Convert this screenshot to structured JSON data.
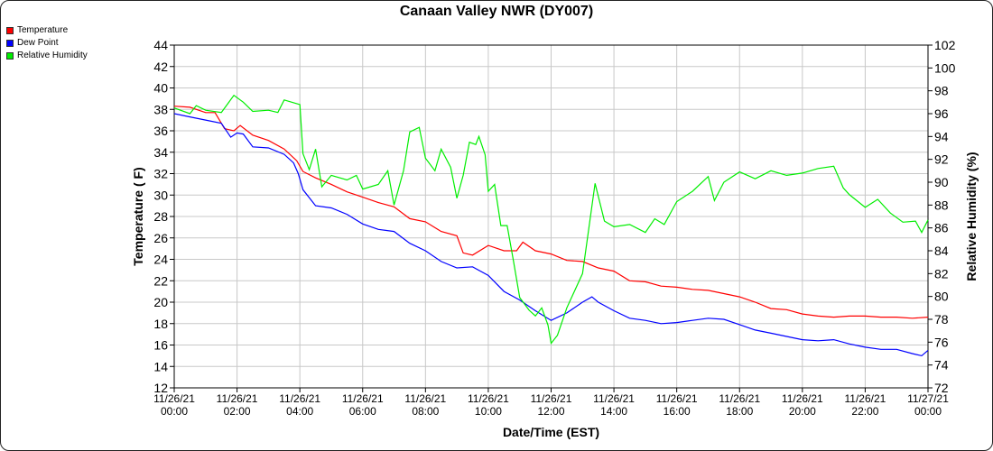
{
  "chart_data": {
    "type": "line",
    "title": "Canaan Valley NWR (DY007)",
    "xlabel": "Date/Time (EST)",
    "ylabel": "Temperature ( F)",
    "y2label": "Relative Humidity (%)",
    "ylim": [
      12,
      44
    ],
    "y2lim": [
      72,
      102
    ],
    "grid": true,
    "legend_position": "top-left",
    "x_ticks": [
      [
        "11/26/21",
        "00:00"
      ],
      [
        "11/26/21",
        "02:00"
      ],
      [
        "11/26/21",
        "04:00"
      ],
      [
        "11/26/21",
        "06:00"
      ],
      [
        "11/26/21",
        "08:00"
      ],
      [
        "11/26/21",
        "10:00"
      ],
      [
        "11/26/21",
        "12:00"
      ],
      [
        "11/26/21",
        "14:00"
      ],
      [
        "11/26/21",
        "16:00"
      ],
      [
        "11/26/21",
        "18:00"
      ],
      [
        "11/26/21",
        "20:00"
      ],
      [
        "11/26/21",
        "22:00"
      ],
      [
        "11/27/21",
        "00:00"
      ]
    ],
    "y_ticks": [
      12,
      14,
      16,
      18,
      20,
      22,
      24,
      26,
      28,
      30,
      32,
      34,
      36,
      38,
      40,
      42,
      44
    ],
    "y2_ticks": [
      72,
      74,
      76,
      78,
      80,
      82,
      84,
      86,
      88,
      90,
      92,
      94,
      96,
      98,
      100,
      102
    ],
    "series": [
      {
        "name": "Temperature",
        "axis": "left",
        "color": "#ff0000",
        "x": [
          0,
          0.5,
          1,
          1.3,
          1.6,
          1.9,
          2.1,
          2.5,
          3,
          3.5,
          3.9,
          4.1,
          4.5,
          5,
          5.5,
          6,
          6.5,
          7,
          7.5,
          8,
          8.5,
          9,
          9.2,
          9.5,
          10,
          10.5,
          10.9,
          11.1,
          11.5,
          12,
          12.5,
          13,
          13.5,
          14,
          14.5,
          15,
          15.5,
          16,
          16.5,
          17,
          17.5,
          18,
          18.5,
          19,
          19.5,
          20,
          20.5,
          21,
          21.5,
          22,
          22.5,
          23,
          23.5,
          24
        ],
        "values": [
          38.3,
          38.2,
          37.7,
          37.7,
          36.2,
          36.0,
          36.5,
          35.6,
          35.1,
          34.3,
          33.2,
          32.2,
          31.6,
          31.0,
          30.3,
          29.8,
          29.3,
          28.9,
          27.8,
          27.5,
          26.6,
          26.2,
          24.6,
          24.4,
          25.3,
          24.8,
          24.8,
          25.6,
          24.8,
          24.5,
          23.9,
          23.8,
          23.2,
          22.9,
          22.0,
          21.9,
          21.5,
          21.4,
          21.2,
          21.1,
          20.8,
          20.5,
          20.0,
          19.4,
          19.3,
          18.9,
          18.7,
          18.6,
          18.7,
          18.7,
          18.6,
          18.6,
          18.5,
          18.6
        ]
      },
      {
        "name": "Dew Point",
        "axis": "left",
        "color": "#0000ff",
        "x": [
          0,
          0.5,
          1,
          1.5,
          1.8,
          2.0,
          2.2,
          2.5,
          3,
          3.5,
          3.8,
          3.95,
          4.1,
          4.5,
          5,
          5.5,
          6,
          6.5,
          7,
          7.5,
          8,
          8.5,
          9,
          9.5,
          10,
          10.5,
          11,
          11.5,
          12,
          12.5,
          13,
          13.3,
          13.5,
          14,
          14.5,
          15,
          15.5,
          16,
          16.5,
          17,
          17.5,
          18,
          18.5,
          19,
          19.5,
          20,
          20.5,
          21,
          21.5,
          22,
          22.5,
          23,
          23.5,
          23.8,
          24
        ],
        "values": [
          37.6,
          37.3,
          37.0,
          36.7,
          35.4,
          35.8,
          35.7,
          34.5,
          34.4,
          33.8,
          33.0,
          32.0,
          30.5,
          29.0,
          28.8,
          28.2,
          27.3,
          26.8,
          26.6,
          25.5,
          24.8,
          23.8,
          23.2,
          23.3,
          22.5,
          21.0,
          20.2,
          19.2,
          18.3,
          19.0,
          20.0,
          20.5,
          20.0,
          19.2,
          18.5,
          18.3,
          18.0,
          18.1,
          18.3,
          18.5,
          18.4,
          17.9,
          17.4,
          17.1,
          16.8,
          16.5,
          16.4,
          16.5,
          16.1,
          15.8,
          15.6,
          15.6,
          15.2,
          15.0,
          15.5
        ]
      },
      {
        "name": "Relative Humidity",
        "axis": "right",
        "color": "#00ee00",
        "x": [
          0,
          0.5,
          0.7,
          1,
          1.5,
          1.9,
          2.2,
          2.5,
          3,
          3.3,
          3.5,
          4.0,
          4.1,
          4.3,
          4.5,
          4.7,
          5.0,
          5.5,
          5.8,
          6.0,
          6.5,
          6.8,
          7.0,
          7.3,
          7.5,
          7.8,
          8.0,
          8.3,
          8.5,
          8.8,
          9.0,
          9.2,
          9.4,
          9.6,
          9.7,
          9.9,
          10.0,
          10.2,
          10.4,
          10.6,
          10.8,
          11.0,
          11.3,
          11.5,
          11.7,
          11.9,
          12.0,
          12.2,
          12.5,
          13.0,
          13.4,
          13.7,
          14.0,
          14.5,
          15.0,
          15.3,
          15.6,
          16.0,
          16.5,
          17.0,
          17.2,
          17.5,
          18.0,
          18.5,
          19.0,
          19.5,
          20.0,
          20.5,
          21.0,
          21.3,
          21.5,
          22.0,
          22.4,
          22.8,
          23.2,
          23.6,
          23.8,
          24.0
        ],
        "values": [
          96.5,
          96.0,
          96.7,
          96.3,
          96.1,
          97.6,
          97.0,
          96.2,
          96.3,
          96.1,
          97.2,
          96.8,
          92.5,
          91.1,
          92.9,
          89.6,
          90.6,
          90.2,
          90.6,
          89.4,
          89.8,
          91.0,
          88.0,
          91.0,
          94.4,
          94.8,
          92.1,
          91.0,
          92.9,
          91.3,
          88.6,
          90.6,
          93.5,
          93.3,
          94.0,
          92.4,
          89.2,
          89.8,
          86.2,
          86.2,
          83.1,
          79.9,
          78.8,
          78.3,
          79.0,
          77.5,
          75.9,
          76.6,
          79.0,
          82.0,
          89.9,
          86.6,
          86.1,
          86.3,
          85.6,
          86.8,
          86.3,
          88.3,
          89.2,
          90.5,
          88.4,
          90.0,
          90.9,
          90.3,
          91.0,
          90.6,
          90.8,
          91.2,
          91.4,
          89.5,
          88.9,
          87.8,
          88.5,
          87.3,
          86.5,
          86.6,
          85.6,
          86.7
        ]
      }
    ]
  }
}
